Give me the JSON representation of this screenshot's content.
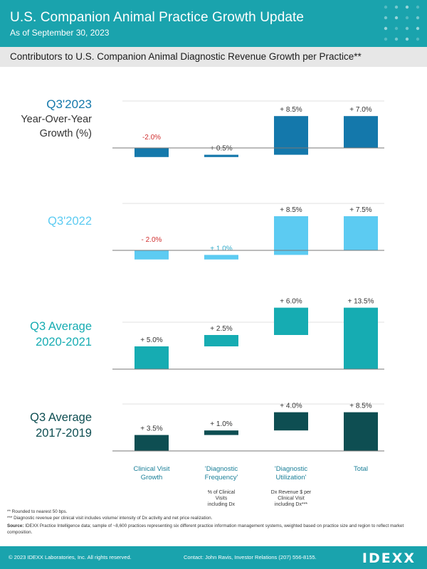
{
  "header": {
    "title": "U.S. Companion Animal Practice Growth Update",
    "subtitle": "As of September 30, 2023"
  },
  "section_heading": "Contributors to U.S. Companion Animal Diagnostic Revenue Growth per Practice**",
  "colors": {
    "header_bg": "#1aa3ad",
    "q3_2023": "#1478ab",
    "q3_2022": "#5ccbf2",
    "avg_2020_2021": "#16acb2",
    "avg_2017_2019": "#0e4e52",
    "negative_label": "#d03030"
  },
  "chart_data": {
    "type": "bar",
    "categories": [
      "Clinical Visit Growth",
      "'Diagnostic Frequency'",
      "'Diagnostic Utilization'",
      "Total"
    ],
    "category_notes": [
      "",
      "% of Clinical Visits including Dx",
      "Dx Revenue $ per Clinical Visit including Dx***",
      ""
    ],
    "series": [
      {
        "name": "Q3'2023",
        "name_lines": [
          "Q3'2023",
          "Year-Over-Year",
          "Growth (%)"
        ],
        "values": [
          -2.0,
          0.5,
          8.5,
          7.0
        ],
        "labels": [
          "-2.0%",
          "+ 0.5%",
          "+ 8.5%",
          "+ 7.0%"
        ],
        "color": "#1478ab"
      },
      {
        "name": "Q3'2022",
        "name_lines": [
          "Q3'2022"
        ],
        "values": [
          -2.0,
          1.0,
          8.5,
          7.5
        ],
        "labels": [
          "- 2.0%",
          "+ 1.0%",
          "+ 8.5%",
          "+ 7.5%"
        ],
        "color": "#5ccbf2"
      },
      {
        "name": "Q3 Average 2020-2021",
        "name_lines": [
          "Q3 Average",
          "2020-2021"
        ],
        "values": [
          5.0,
          2.5,
          6.0,
          13.5
        ],
        "labels": [
          "+ 5.0%",
          "+ 2.5%",
          "+ 6.0%",
          "+ 13.5%"
        ],
        "color": "#16acb2"
      },
      {
        "name": "Q3 Average 2017-2019",
        "name_lines": [
          "Q3 Average",
          "2017-2019"
        ],
        "values": [
          3.5,
          1.0,
          4.0,
          8.5
        ],
        "labels": [
          "+ 3.5%",
          "+ 1.0%",
          "+ 4.0%",
          "+ 8.5%"
        ],
        "color": "#0e4e52"
      }
    ],
    "waterfall": true,
    "grid": false
  },
  "footnotes": {
    "note1": "** Rounded to nearest 50 bps.",
    "note2": "*** Diagnostic revenue per clinical visit includes volume/ intensity of Dx activity and net price realization.",
    "source_label": "Source:",
    "source_text": " IDEXX Practice Intelligence data; sample of ~8,600 practices representing six different practice information management systems, weighted based on practice size and region to reflect market composition."
  },
  "footer": {
    "copyright": "© 2023 IDEXX Laboratories, Inc. All rights reserved.",
    "contact": "Contact: John Ravis, Investor Relations (207) 556-8155.",
    "logo": "IDEXX"
  }
}
